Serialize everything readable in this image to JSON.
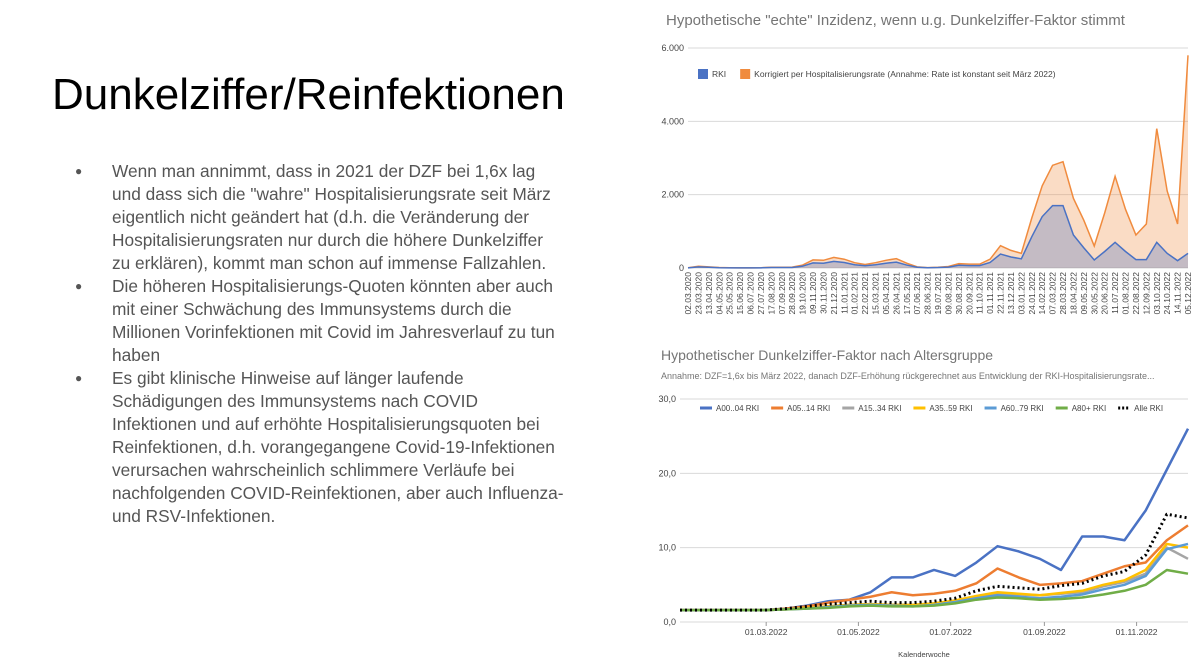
{
  "slide": {
    "title": "Dunkelziffer/Reinfektionen",
    "bullets": [
      "Wenn man annimmt, dass in 2021 der DZF bei 1,6x lag und dass sich die \"wahre\" Hospitalisierungsrate seit März eigentlich nicht geändert hat (d.h. die Veränderung der Hospitalisierungsraten nur durch die höhere Dunkelziffer zu erklären), kommt man schon auf immense Fallzahlen.",
      "Die höheren Hospitalisierungs-Quoten könnten aber auch mit einer Schwächung des Immunsystems durch die Millionen Vorinfektionen mit Covid im Jahresverlauf zu tun haben",
      "Es gibt klinische Hinweise auf länger laufende Schädigungen des Immunsystems nach COVID Infektionen und auf erhöhte Hospitalisierungsquoten bei Reinfektionen, d.h. vorangegangene Covid-19-Infektionen verursachen wahrscheinlich schlimmere Verläufe bei nachfolgenden COVID-Reinfektionen, aber auch Influenza- und RSV-Infektionen."
    ]
  },
  "chart_data": [
    {
      "type": "area",
      "title": "Hypothetische \"echte\" Inzidenz, wenn u.g. Dunkelziffer-Faktor stimmt",
      "categories": [
        "02.03.2020",
        "23.03.2020",
        "13.04.2020",
        "04.05.2020",
        "25.05.2020",
        "15.06.2020",
        "06.07.2020",
        "27.07.2020",
        "17.08.2020",
        "07.09.2020",
        "28.09.2020",
        "19.10.2020",
        "09.11.2020",
        "30.11.2020",
        "21.12.2020",
        "11.01.2021",
        "01.02.2021",
        "22.02.2021",
        "15.03.2021",
        "05.04.2021",
        "26.04.2021",
        "17.05.2021",
        "07.06.2021",
        "28.06.2021",
        "19.07.2021",
        "09.08.2021",
        "30.08.2021",
        "20.09.2021",
        "11.10.2021",
        "01.11.2021",
        "22.11.2021",
        "13.12.2021",
        "03.01.2022",
        "24.01.2022",
        "14.02.2022",
        "07.03.2022",
        "28.03.2022",
        "18.04.2022",
        "09.05.2022",
        "30.05.2022",
        "20.06.2022",
        "11.07.2022",
        "01.08.2022",
        "22.08.2022",
        "12.09.2022",
        "03.10.2022",
        "24.10.2022",
        "14.11.2022",
        "05.12.2022"
      ],
      "series": [
        {
          "name": "Korrigiert per Hospitalisierungsrate (Annahme: Rate ist konstant seit März 2022)",
          "color": "#f08b3e",
          "values": [
            8,
            48,
            32,
            13,
            6,
            5,
            5,
            8,
            19,
            19,
            24,
            80,
            220,
            210,
            290,
            240,
            145,
            95,
            145,
            210,
            255,
            130,
            32,
            10,
            19,
            40,
            120,
            105,
            105,
            240,
            610,
            480,
            400,
            1360,
            2240,
            2800,
            2900,
            1900,
            1300,
            600,
            1500,
            2500,
            1600,
            900,
            1200,
            3800,
            2100,
            1200,
            5800
          ]
        },
        {
          "name": "RKI",
          "color": "#4a72c4",
          "values": [
            5,
            30,
            20,
            8,
            4,
            3,
            3,
            5,
            12,
            12,
            15,
            50,
            140,
            130,
            180,
            150,
            90,
            60,
            90,
            130,
            160,
            80,
            20,
            6,
            12,
            25,
            75,
            65,
            65,
            150,
            380,
            300,
            250,
            850,
            1400,
            1700,
            1700,
            900,
            550,
            220,
            450,
            700,
            450,
            230,
            230,
            700,
            400,
            200,
            400
          ]
        }
      ],
      "ylim": [
        0,
        6000
      ],
      "yticks": [
        0,
        {
          "value": 2000,
          "label": "2.000"
        },
        {
          "value": 4000,
          "label": "4.000"
        },
        {
          "value": 6000,
          "label": "6.000"
        }
      ],
      "grid": true,
      "legend": "top"
    },
    {
      "type": "line",
      "title": "Hypothetischer Dunkelziffer-Faktor nach Altersgruppe",
      "subtitle": "Annahme: DZF=1,6x bis März 2022, danach DZF-Erhöhung rückgerechnet aus Entwicklung der RKI-Hospitalisierungsrate...",
      "x_label": "Kalenderwoche",
      "x": [
        "2022-01-03",
        "2022-01-17",
        "2022-01-31",
        "2022-02-14",
        "2022-02-28",
        "2022-03-14",
        "2022-03-28",
        "2022-04-11",
        "2022-04-25",
        "2022-05-09",
        "2022-05-23",
        "2022-06-06",
        "2022-06-20",
        "2022-07-04",
        "2022-07-18",
        "2022-08-01",
        "2022-08-15",
        "2022-08-29",
        "2022-09-12",
        "2022-09-26",
        "2022-10-10",
        "2022-10-24",
        "2022-11-07",
        "2022-11-21",
        "2022-12-05"
      ],
      "series": [
        {
          "name": "A00..04 RKI",
          "color": "#4a72c4",
          "values": [
            1.6,
            1.6,
            1.6,
            1.6,
            1.6,
            1.8,
            2.2,
            2.8,
            3.0,
            4.0,
            6.0,
            6.0,
            7.0,
            6.2,
            8.0,
            10.2,
            9.5,
            8.5,
            7.0,
            11.5,
            11.5,
            11.0,
            15.0,
            20.5,
            26.0
          ]
        },
        {
          "name": "A05..14 RKI",
          "color": "#ed7d31",
          "values": [
            1.6,
            1.6,
            1.6,
            1.6,
            1.6,
            1.8,
            2.1,
            2.6,
            3.0,
            3.4,
            4.0,
            3.6,
            3.8,
            4.2,
            5.2,
            7.2,
            6.0,
            5.0,
            5.2,
            5.5,
            6.5,
            7.5,
            8.0,
            11.0,
            13.0
          ]
        },
        {
          "name": "A15..34 RKI",
          "color": "#a5a5a5",
          "values": [
            1.6,
            1.6,
            1.6,
            1.6,
            1.6,
            1.7,
            1.9,
            2.1,
            2.3,
            2.4,
            2.3,
            2.3,
            2.5,
            2.8,
            3.4,
            3.8,
            3.7,
            3.6,
            3.8,
            4.0,
            4.8,
            5.4,
            6.5,
            10.0,
            8.5
          ]
        },
        {
          "name": "A35..59 RKI",
          "color": "#ffc000",
          "values": [
            1.6,
            1.6,
            1.6,
            1.6,
            1.6,
            1.7,
            1.9,
            2.1,
            2.3,
            2.4,
            2.3,
            2.3,
            2.5,
            2.9,
            3.5,
            4.0,
            3.8,
            3.6,
            3.9,
            4.2,
            5.0,
            5.6,
            7.0,
            10.5,
            10.0
          ]
        },
        {
          "name": "A60..79 RKI",
          "color": "#5b9bd5",
          "values": [
            1.6,
            1.6,
            1.6,
            1.6,
            1.6,
            1.7,
            1.8,
            2.0,
            2.2,
            2.3,
            2.2,
            2.1,
            2.3,
            2.7,
            3.2,
            3.6,
            3.4,
            3.2,
            3.4,
            3.7,
            4.4,
            5.0,
            6.2,
            9.8,
            10.5
          ]
        },
        {
          "name": "A80+ RKI",
          "color": "#70ad47",
          "values": [
            1.6,
            1.6,
            1.6,
            1.6,
            1.6,
            1.7,
            1.8,
            1.9,
            2.1,
            2.2,
            2.1,
            2.1,
            2.2,
            2.5,
            3.0,
            3.3,
            3.2,
            3.0,
            3.1,
            3.3,
            3.7,
            4.2,
            5.0,
            7.0,
            6.5
          ]
        },
        {
          "name": "Alle RKI",
          "color": "#000000",
          "dashed": true,
          "values": [
            1.6,
            1.6,
            1.6,
            1.6,
            1.6,
            1.8,
            2.1,
            2.4,
            2.6,
            2.8,
            2.6,
            2.6,
            2.8,
            3.2,
            4.2,
            4.8,
            4.6,
            4.4,
            4.9,
            5.2,
            6.2,
            6.8,
            9.0,
            14.5,
            14.0
          ]
        }
      ],
      "xlim": [
        "2022-01-03",
        "2022-12-05"
      ],
      "xticks": [
        {
          "value": "2022-03-01",
          "label": "01.03.2022"
        },
        {
          "value": "2022-05-01",
          "label": "01.05.2022"
        },
        {
          "value": "2022-07-01",
          "label": "01.07.2022"
        },
        {
          "value": "2022-09-01",
          "label": "01.09.2022"
        },
        {
          "value": "2022-11-01",
          "label": "01.11.2022"
        }
      ],
      "ylim": [
        0,
        30
      ],
      "yticks": [
        {
          "value": 0,
          "label": "0,0"
        },
        {
          "value": 10,
          "label": "10,0"
        },
        {
          "value": 20,
          "label": "20,0"
        },
        {
          "value": 30,
          "label": "30,0"
        }
      ],
      "grid": true,
      "legend": "top"
    }
  ]
}
